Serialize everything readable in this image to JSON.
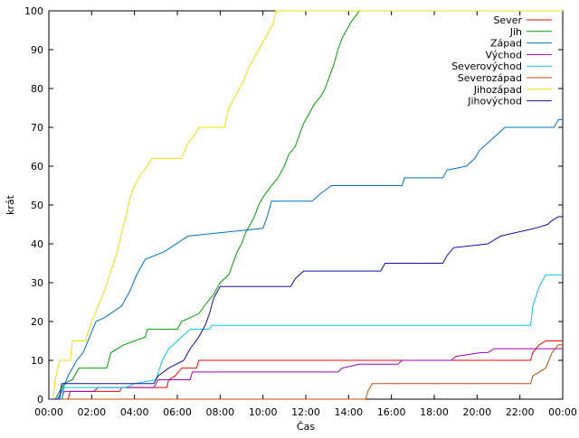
{
  "chart_data": {
    "type": "line",
    "xlabel": "Čas",
    "ylabel": "krát",
    "xlim": [
      0,
      24
    ],
    "ylim": [
      0,
      100
    ],
    "x_ticks": [
      {
        "value": 0,
        "label": "00:00"
      },
      {
        "value": 2,
        "label": "02:00"
      },
      {
        "value": 4,
        "label": "04:00"
      },
      {
        "value": 6,
        "label": "06:00"
      },
      {
        "value": 8,
        "label": "08:00"
      },
      {
        "value": 10,
        "label": "10:00"
      },
      {
        "value": 12,
        "label": "12:00"
      },
      {
        "value": 14,
        "label": "14:00"
      },
      {
        "value": 16,
        "label": "16:00"
      },
      {
        "value": 18,
        "label": "18:00"
      },
      {
        "value": 20,
        "label": "20:00"
      },
      {
        "value": 22,
        "label": "22:00"
      },
      {
        "value": 24,
        "label": "00:00"
      }
    ],
    "y_ticks": [
      {
        "value": 0,
        "label": "0"
      },
      {
        "value": 10,
        "label": "10"
      },
      {
        "value": 20,
        "label": "20"
      },
      {
        "value": 30,
        "label": "30"
      },
      {
        "value": 40,
        "label": "40"
      },
      {
        "value": 50,
        "label": "50"
      },
      {
        "value": 60,
        "label": "60"
      },
      {
        "value": 70,
        "label": "70"
      },
      {
        "value": 80,
        "label": "80"
      },
      {
        "value": 90,
        "label": "90"
      },
      {
        "value": 100,
        "label": "100"
      }
    ],
    "grid": false,
    "legend_position": "top-right",
    "series": [
      {
        "name": "Sever",
        "color": "#ff0000",
        "points": [
          [
            0,
            0
          ],
          [
            0.9,
            0
          ],
          [
            1.0,
            2
          ],
          [
            3.3,
            2
          ],
          [
            3.4,
            3
          ],
          [
            5.5,
            3
          ],
          [
            5.6,
            5
          ],
          [
            5.9,
            6
          ],
          [
            6.2,
            8
          ],
          [
            6.9,
            8
          ],
          [
            7.0,
            10
          ],
          [
            22.5,
            10
          ],
          [
            22.6,
            12
          ],
          [
            22.9,
            14
          ],
          [
            23.2,
            15
          ],
          [
            24,
            15
          ]
        ]
      },
      {
        "name": "Jih",
        "color": "#00a000",
        "points": [
          [
            0,
            0
          ],
          [
            0.3,
            0
          ],
          [
            0.5,
            2
          ],
          [
            0.7,
            4
          ],
          [
            1.1,
            5
          ],
          [
            1.4,
            8
          ],
          [
            2.7,
            8
          ],
          [
            2.9,
            12
          ],
          [
            3.5,
            14
          ],
          [
            4.5,
            16
          ],
          [
            4.6,
            18
          ],
          [
            6.0,
            18
          ],
          [
            6.2,
            20
          ],
          [
            7.0,
            22
          ],
          [
            7.4,
            25
          ],
          [
            7.7,
            27
          ],
          [
            8.0,
            30
          ],
          [
            8.4,
            32
          ],
          [
            8.6,
            35
          ],
          [
            8.8,
            38
          ],
          [
            9.0,
            40
          ],
          [
            9.2,
            43
          ],
          [
            9.4,
            45
          ],
          [
            9.6,
            47
          ],
          [
            9.8,
            50
          ],
          [
            10.0,
            52
          ],
          [
            10.4,
            55
          ],
          [
            10.7,
            57
          ],
          [
            11.0,
            60
          ],
          [
            11.2,
            63
          ],
          [
            11.5,
            65
          ],
          [
            11.7,
            68
          ],
          [
            11.9,
            71
          ],
          [
            12.1,
            73
          ],
          [
            12.4,
            76
          ],
          [
            12.7,
            78
          ],
          [
            12.9,
            80
          ],
          [
            13.1,
            83
          ],
          [
            13.3,
            86
          ],
          [
            13.5,
            90
          ],
          [
            13.7,
            93
          ],
          [
            13.9,
            95
          ],
          [
            14.1,
            97
          ],
          [
            14.5,
            100
          ],
          [
            24,
            100
          ]
        ]
      },
      {
        "name": "Západ",
        "color": "#0070c0",
        "points": [
          [
            0,
            0
          ],
          [
            0.4,
            0
          ],
          [
            0.6,
            2
          ],
          [
            0.9,
            6
          ],
          [
            1.3,
            10
          ],
          [
            1.6,
            12
          ],
          [
            1.9,
            16
          ],
          [
            2.2,
            20
          ],
          [
            2.6,
            21
          ],
          [
            3.4,
            24
          ],
          [
            3.8,
            28
          ],
          [
            4.1,
            32
          ],
          [
            4.5,
            36
          ],
          [
            5.4,
            38
          ],
          [
            6.5,
            42
          ],
          [
            10.0,
            44
          ],
          [
            10.2,
            47
          ],
          [
            10.4,
            51
          ],
          [
            12.3,
            51
          ],
          [
            12.7,
            53
          ],
          [
            13.2,
            55
          ],
          [
            16.5,
            55
          ],
          [
            16.6,
            57
          ],
          [
            18.4,
            57
          ],
          [
            18.6,
            59
          ],
          [
            19.5,
            60
          ],
          [
            19.9,
            62
          ],
          [
            20.1,
            64
          ],
          [
            20.5,
            66
          ],
          [
            20.9,
            68
          ],
          [
            21.3,
            70
          ],
          [
            23.6,
            70
          ],
          [
            23.8,
            72
          ],
          [
            24,
            72
          ]
        ]
      },
      {
        "name": "Východ",
        "color": "#a000c0",
        "points": [
          [
            0,
            0
          ],
          [
            0.6,
            0
          ],
          [
            0.7,
            2
          ],
          [
            2.1,
            2
          ],
          [
            2.3,
            3
          ],
          [
            4.9,
            3
          ],
          [
            5.1,
            5
          ],
          [
            6.6,
            5
          ],
          [
            6.7,
            7
          ],
          [
            13.5,
            7
          ],
          [
            13.7,
            8
          ],
          [
            14.5,
            9
          ],
          [
            16.3,
            9
          ],
          [
            16.5,
            10
          ],
          [
            18.8,
            10
          ],
          [
            19.0,
            11
          ],
          [
            20.2,
            12
          ],
          [
            20.5,
            12
          ],
          [
            20.8,
            13
          ],
          [
            24,
            13
          ]
        ]
      },
      {
        "name": "Severovýchod",
        "color": "#00c8e0",
        "points": [
          [
            0,
            0
          ],
          [
            0.6,
            0
          ],
          [
            0.7,
            3
          ],
          [
            3.6,
            3
          ],
          [
            4.0,
            4
          ],
          [
            5.0,
            5
          ],
          [
            5.3,
            10
          ],
          [
            5.6,
            13
          ],
          [
            6.2,
            16
          ],
          [
            6.6,
            18
          ],
          [
            7.5,
            18
          ],
          [
            7.6,
            19
          ],
          [
            22.5,
            19
          ],
          [
            22.6,
            24
          ],
          [
            22.9,
            29
          ],
          [
            23.2,
            32
          ],
          [
            24,
            32
          ]
        ]
      },
      {
        "name": "Severozápad",
        "color": "#c05000",
        "points": [
          [
            0,
            0
          ],
          [
            14.8,
            0
          ],
          [
            14.9,
            2
          ],
          [
            15.1,
            4
          ],
          [
            22.5,
            4
          ],
          [
            22.6,
            6
          ],
          [
            23.2,
            8
          ],
          [
            23.5,
            12
          ],
          [
            23.8,
            14
          ],
          [
            24,
            14
          ]
        ]
      },
      {
        "name": "Jihozápad",
        "color": "#f0e000",
        "points": [
          [
            0,
            0
          ],
          [
            0.2,
            0
          ],
          [
            0.3,
            5
          ],
          [
            0.5,
            10
          ],
          [
            1.0,
            10
          ],
          [
            1.1,
            15
          ],
          [
            1.7,
            15
          ],
          [
            2.0,
            20
          ],
          [
            2.3,
            24
          ],
          [
            2.6,
            28
          ],
          [
            2.9,
            33
          ],
          [
            3.2,
            38
          ],
          [
            3.4,
            43
          ],
          [
            3.6,
            47
          ],
          [
            3.8,
            52
          ],
          [
            4.0,
            55
          ],
          [
            4.3,
            58
          ],
          [
            4.6,
            60
          ],
          [
            4.8,
            62
          ],
          [
            6.2,
            62
          ],
          [
            6.5,
            66
          ],
          [
            6.8,
            68
          ],
          [
            7.0,
            70
          ],
          [
            8.2,
            70
          ],
          [
            8.4,
            75
          ],
          [
            8.7,
            78
          ],
          [
            9.1,
            82
          ],
          [
            9.3,
            85
          ],
          [
            9.6,
            88
          ],
          [
            9.8,
            90
          ],
          [
            10.0,
            92
          ],
          [
            10.3,
            95
          ],
          [
            10.5,
            97
          ],
          [
            10.6,
            100
          ],
          [
            24,
            100
          ]
        ]
      },
      {
        "name": "Jihovýchod",
        "color": "#1010a0",
        "points": [
          [
            0,
            0
          ],
          [
            0.5,
            0
          ],
          [
            0.6,
            4
          ],
          [
            4.9,
            4
          ],
          [
            5.1,
            6
          ],
          [
            5.6,
            8
          ],
          [
            6.3,
            10
          ],
          [
            6.6,
            13
          ],
          [
            7.0,
            16
          ],
          [
            7.3,
            19
          ],
          [
            7.5,
            22
          ],
          [
            7.7,
            26
          ],
          [
            8.0,
            29
          ],
          [
            11.3,
            29
          ],
          [
            11.5,
            31
          ],
          [
            11.9,
            33
          ],
          [
            15.5,
            33
          ],
          [
            15.7,
            35
          ],
          [
            18.4,
            35
          ],
          [
            18.6,
            37
          ],
          [
            18.9,
            39
          ],
          [
            20.5,
            40
          ],
          [
            21.1,
            42
          ],
          [
            22.7,
            44
          ],
          [
            23.3,
            45
          ],
          [
            23.5,
            46
          ],
          [
            23.8,
            47
          ],
          [
            24,
            47
          ]
        ]
      }
    ]
  }
}
